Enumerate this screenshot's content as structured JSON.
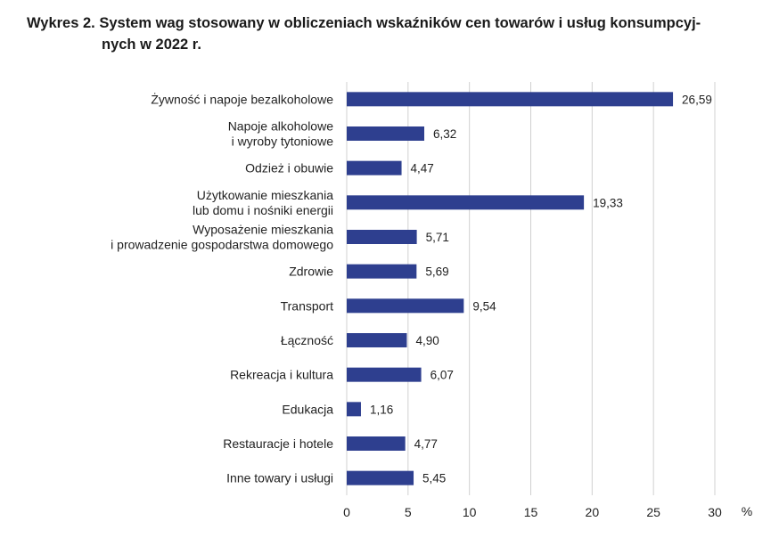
{
  "chart_data": {
    "type": "bar",
    "orientation": "horizontal",
    "title_line1": "Wykres 2. System wag stosowany w obliczeniach wskaźników cen towarów i usług konsumpcyj-",
    "title_line2": "nych w 2022 r.",
    "categories": [
      [
        "Żywność i napoje bezalkoholowe"
      ],
      [
        "Napoje alkoholowe",
        "i wyroby tytoniowe"
      ],
      [
        "Odzież i obuwie"
      ],
      [
        "Użytkowanie mieszkania",
        "lub domu i nośniki energii"
      ],
      [
        "Wyposażenie mieszkania",
        "i prowadzenie gospodarstwa domowego"
      ],
      [
        "Zdrowie"
      ],
      [
        "Transport"
      ],
      [
        "Łączność"
      ],
      [
        "Rekreacja i kultura"
      ],
      [
        "Edukacja"
      ],
      [
        "Restauracje i hotele"
      ],
      [
        "Inne towary i usługi"
      ]
    ],
    "values": [
      26.59,
      6.32,
      4.47,
      19.33,
      5.71,
      5.69,
      9.54,
      4.9,
      6.07,
      1.16,
      4.77,
      5.45
    ],
    "value_labels": [
      "26,59",
      "6,32",
      "4,47",
      "19,33",
      "5,71",
      "5,69",
      "9,54",
      "4,90",
      "6,07",
      "1,16",
      "4,77",
      "5,45"
    ],
    "xlim": [
      0,
      30
    ],
    "xticks": [
      "0",
      "5",
      "10",
      "15",
      "20",
      "25",
      "30"
    ],
    "xunit": "%",
    "grid": true,
    "bar_color": "#2e3f8f",
    "grid_color": "#d0d0d0"
  }
}
